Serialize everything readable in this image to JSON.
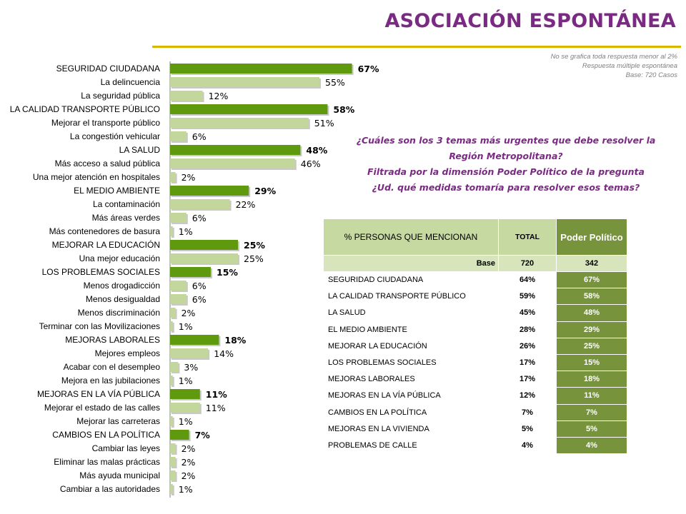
{
  "header": {
    "title": "ASOCIACIÓN ESPONTÁNEA",
    "notes": [
      "No se grafica toda respuesta menor al 2%",
      "Respuesta múltiple espontánea",
      "Base: 720 Casos"
    ]
  },
  "question": {
    "line1": "¿Cuáles son los 3 temas más urgentes que debe resolver la",
    "line2": "Región Metropolitana?",
    "line3": "Filtrada por la dimensión Poder Político de la pregunta",
    "line4": "¿Ud. qué medidas tomaría para resolver esos temas?"
  },
  "colors": {
    "category_bar": "#5f9a0e",
    "item_bar": "#c3d69b",
    "title": "#7a2a83",
    "rule": "#d9b600",
    "table_accent": "#77933c"
  },
  "chart_data": {
    "type": "bar",
    "orientation": "horizontal",
    "xlim": [
      0,
      100
    ],
    "items": [
      {
        "label": "SEGURIDAD CIUDADANA",
        "value": 67,
        "display": "67%",
        "group": true
      },
      {
        "label": "La delincuencia",
        "value": 55,
        "display": "55%",
        "group": false
      },
      {
        "label": "La seguridad pública",
        "value": 12,
        "display": "12%",
        "group": false
      },
      {
        "label": "LA CALIDAD TRANSPORTE PÚBLICO",
        "value": 58,
        "display": "58%",
        "group": true
      },
      {
        "label": "Mejorar el transporte público",
        "value": 51,
        "display": "51%",
        "group": false
      },
      {
        "label": "La congestión vehicular",
        "value": 6,
        "display": "6%",
        "group": false
      },
      {
        "label": "LA SALUD",
        "value": 48,
        "display": "48%",
        "group": true
      },
      {
        "label": "Más acceso a salud pública",
        "value": 46,
        "display": "46%",
        "group": false
      },
      {
        "label": "Una mejor atención en hospitales",
        "value": 2,
        "display": "2%",
        "group": false
      },
      {
        "label": "EL MEDIO AMBIENTE",
        "value": 29,
        "display": "29%",
        "group": true
      },
      {
        "label": "La contaminación",
        "value": 22,
        "display": "22%",
        "group": false
      },
      {
        "label": "Más áreas verdes",
        "value": 6,
        "display": "6%",
        "group": false
      },
      {
        "label": "Más contenedores de basura",
        "value": 1,
        "display": "1%",
        "group": false
      },
      {
        "label": "MEJORAR LA EDUCACIÓN",
        "value": 25,
        "display": "25%",
        "group": true
      },
      {
        "label": "Una mejor educación",
        "value": 25,
        "display": "25%",
        "group": false
      },
      {
        "label": "LOS PROBLEMAS SOCIALES",
        "value": 15,
        "display": "15%",
        "group": true
      },
      {
        "label": "Menos drogadicción",
        "value": 6,
        "display": "6%",
        "group": false
      },
      {
        "label": "Menos desigualdad",
        "value": 6,
        "display": "6%",
        "group": false
      },
      {
        "label": "Menos discriminación",
        "value": 2,
        "display": "2%",
        "group": false
      },
      {
        "label": "Terminar con las Movilizaciones",
        "value": 1,
        "display": "1%",
        "group": false
      },
      {
        "label": "MEJORAS LABORALES",
        "value": 18,
        "display": "18%",
        "group": true
      },
      {
        "label": "Mejores empleos",
        "value": 14,
        "display": "14%",
        "group": false
      },
      {
        "label": "Acabar con el desempleo",
        "value": 3,
        "display": "3%",
        "group": false
      },
      {
        "label": "Mejora en las jubilaciones",
        "value": 1,
        "display": "1%",
        "group": false
      },
      {
        "label": "MEJORAS EN LA VÍA PÚBLICA",
        "value": 11,
        "display": "11%",
        "group": true
      },
      {
        "label": "Mejorar el estado de las calles",
        "value": 11,
        "display": "11%",
        "group": false
      },
      {
        "label": "Mejorar las carreteras",
        "value": 1,
        "display": "1%",
        "group": false
      },
      {
        "label": "CAMBIOS EN LA POLÍTICA",
        "value": 7,
        "display": "7%",
        "group": true
      },
      {
        "label": "Cambiar las leyes",
        "value": 2,
        "display": "2%",
        "group": false
      },
      {
        "label": "Eliminar las malas prácticas",
        "value": 2,
        "display": "2%",
        "group": false
      },
      {
        "label": "Más ayuda municipal",
        "value": 2,
        "display": "2%",
        "group": false
      },
      {
        "label": "Cambiar a las autoridades",
        "value": 1,
        "display": "1%",
        "group": false
      }
    ]
  },
  "table": {
    "headers": {
      "label": "% PERSONAS QUE MENCIONAN",
      "total": "TOTAL",
      "segment": "Poder Político"
    },
    "base": {
      "label": "Base",
      "total": "720",
      "segment": "342"
    },
    "rows": [
      {
        "label": "SEGURIDAD CIUDADANA",
        "total": "64%",
        "segment": "67%"
      },
      {
        "label": "LA CALIDAD TRANSPORTE PÚBLICO",
        "total": "59%",
        "segment": "58%"
      },
      {
        "label": "LA SALUD",
        "total": "45%",
        "segment": "48%"
      },
      {
        "label": "EL MEDIO AMBIENTE",
        "total": "28%",
        "segment": "29%"
      },
      {
        "label": "MEJORAR LA EDUCACIÓN",
        "total": "26%",
        "segment": "25%"
      },
      {
        "label": "LOS PROBLEMAS SOCIALES",
        "total": "17%",
        "segment": "15%"
      },
      {
        "label": "MEJORAS LABORALES",
        "total": "17%",
        "segment": "18%"
      },
      {
        "label": "MEJORAS EN LA VÍA PÚBLICA",
        "total": "12%",
        "segment": "11%"
      },
      {
        "label": "CAMBIOS EN LA POLÍTICA",
        "total": "7%",
        "segment": "7%"
      },
      {
        "label": "MEJORAS EN LA VIVIENDA",
        "total": "5%",
        "segment": "5%"
      },
      {
        "label": "PROBLEMAS DE CALLE",
        "total": "4%",
        "segment": "4%"
      }
    ]
  }
}
